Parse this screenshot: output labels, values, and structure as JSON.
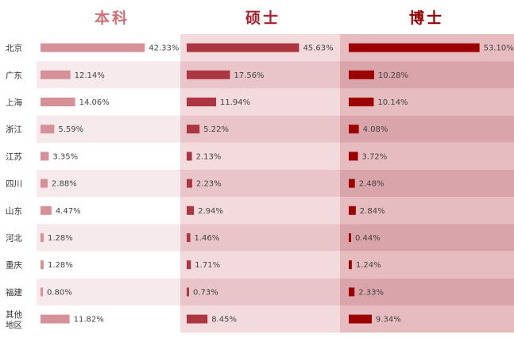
{
  "columns": [
    {
      "name": "本科",
      "bar_color": "#d69198",
      "header_color": "#d06f76"
    },
    {
      "name": "硕士",
      "bar_color": "#ab3540",
      "header_color": "#a8202c"
    },
    {
      "name": "博士",
      "bar_color": "#9c0000",
      "header_color": "#920000"
    }
  ],
  "chart_data": {
    "type": "bar",
    "orientation": "horizontal",
    "categories": [
      "北京",
      "广东",
      "上海",
      "浙江",
      "江苏",
      "四川",
      "山东",
      "河北",
      "重庆",
      "福建",
      "其他地区"
    ],
    "category_lines": [
      [
        "北京"
      ],
      [
        "广东"
      ],
      [
        "上海"
      ],
      [
        "浙江"
      ],
      [
        "江苏"
      ],
      [
        "四川"
      ],
      [
        "山东"
      ],
      [
        "河北"
      ],
      [
        "重庆"
      ],
      [
        "福建"
      ],
      [
        "其他",
        "地区"
      ]
    ],
    "series": [
      {
        "name": "本科",
        "values": [
          42.33,
          12.14,
          14.06,
          5.59,
          3.35,
          2.88,
          4.47,
          1.28,
          1.28,
          0.8,
          11.82
        ],
        "labels": [
          "42.33%",
          "12.14%",
          "14.06%",
          "5.59%",
          "3.35%",
          "2.88%",
          "4.47%",
          "1.28%",
          "1.28%",
          "0.80%",
          "11.82%"
        ]
      },
      {
        "name": "硕士",
        "values": [
          45.63,
          17.56,
          11.94,
          5.22,
          2.13,
          2.23,
          2.94,
          1.46,
          1.71,
          0.73,
          8.45
        ],
        "labels": [
          "45.63%",
          "17.56%",
          "11.94%",
          "5.22%",
          "2.13%",
          "2.23%",
          "2.94%",
          "1.46%",
          "1.71%",
          "0.73%",
          "8.45%"
        ]
      },
      {
        "name": "博士",
        "values": [
          53.1,
          10.28,
          10.14,
          4.08,
          3.72,
          2.48,
          2.84,
          0.44,
          1.24,
          2.33,
          9.34
        ],
        "labels": [
          "53.10%",
          "10.28%",
          "10.14%",
          "4.08%",
          "3.72%",
          "2.48%",
          "2.84%",
          "0.44%",
          "1.24%",
          "2.33%",
          "9.34%"
        ]
      }
    ],
    "unit": "%"
  }
}
